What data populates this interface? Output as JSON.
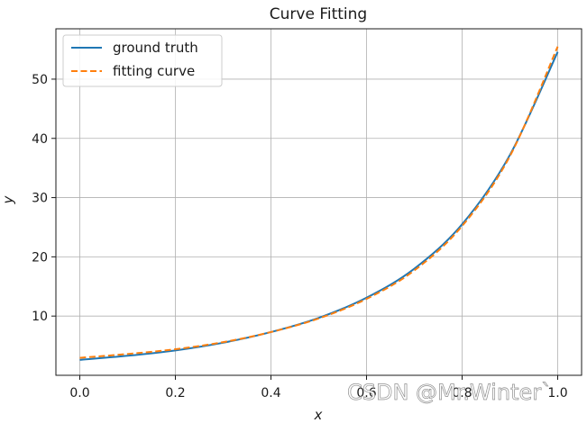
{
  "chart_data": {
    "type": "line",
    "title": "Curve Fitting",
    "xlabel": "x",
    "ylabel": "y",
    "xlim": [
      -0.05,
      1.05
    ],
    "ylim": [
      0.0,
      58.5
    ],
    "grid": true,
    "legend_position": "top-left",
    "x_ticks": [
      0.0,
      0.2,
      0.4,
      0.6,
      0.8,
      1.0
    ],
    "x_tick_labels": [
      "0.0",
      "0.2",
      "0.4",
      "0.6",
      "0.8",
      "1.0"
    ],
    "y_ticks": [
      10,
      20,
      30,
      40,
      50
    ],
    "y_tick_labels": [
      "10",
      "20",
      "30",
      "40",
      "50"
    ],
    "x": [
      0.0,
      0.1,
      0.2,
      0.3,
      0.4,
      0.5,
      0.6,
      0.7,
      0.8,
      0.9,
      1.0
    ],
    "series": [
      {
        "name": "ground truth",
        "color": "#1f77b4",
        "style": "solid",
        "values": [
          2.6,
          3.3,
          4.2,
          5.5,
          7.3,
          9.7,
          13.1,
          18.0,
          25.5,
          37.2,
          54.6
        ]
      },
      {
        "name": "fitting curve",
        "color": "#ff7f0e",
        "style": "dashed",
        "values": [
          2.95,
          3.6,
          4.4,
          5.6,
          7.3,
          9.6,
          12.9,
          17.7,
          25.2,
          37.0,
          55.5
        ]
      }
    ]
  },
  "watermark": "CSDN @Mr.Winter`"
}
